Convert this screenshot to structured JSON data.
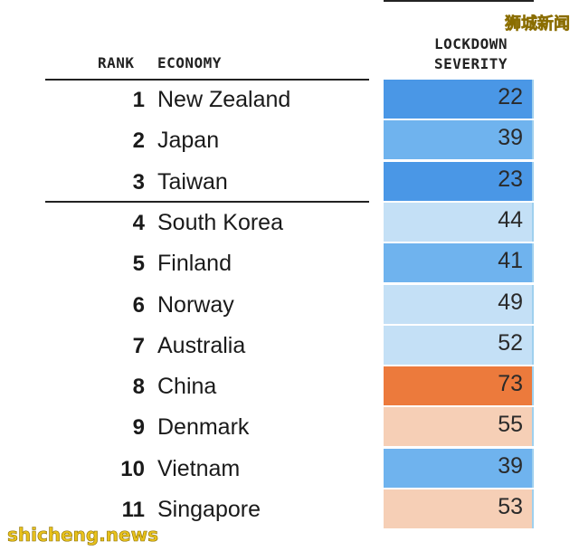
{
  "watermarks": {
    "top": "狮城新闻",
    "bottom": "shicheng.news"
  },
  "headers": {
    "rank": "RANK",
    "economy": "ECONOMY",
    "severity_line1": "LOCKDOWN",
    "severity_line2": "SEVERITY"
  },
  "colors": {
    "strong_blue": "#4a97e6",
    "mid_blue": "#6fb3ee",
    "light_blue": "#c4e0f6",
    "orange": "#ec7a3c",
    "peach": "#f6cfb6"
  },
  "rows": [
    {
      "rank": "1",
      "economy": "New Zealand",
      "severity": "22",
      "color": "#4a97e6"
    },
    {
      "rank": "2",
      "economy": "Japan",
      "severity": "39",
      "color": "#6fb3ee"
    },
    {
      "rank": "3",
      "economy": "Taiwan",
      "severity": "23",
      "color": "#4a97e6"
    },
    {
      "rank": "4",
      "economy": "South Korea",
      "severity": "44",
      "color": "#c4e0f6"
    },
    {
      "rank": "5",
      "economy": "Finland",
      "severity": "41",
      "color": "#6fb3ee"
    },
    {
      "rank": "6",
      "economy": "Norway",
      "severity": "49",
      "color": "#c4e0f6"
    },
    {
      "rank": "7",
      "economy": "Australia",
      "severity": "52",
      "color": "#c4e0f6"
    },
    {
      "rank": "8",
      "economy": "China",
      "severity": "73",
      "color": "#ec7a3c"
    },
    {
      "rank": "9",
      "economy": "Denmark",
      "severity": "55",
      "color": "#f6cfb6"
    },
    {
      "rank": "10",
      "economy": "Vietnam",
      "severity": "39",
      "color": "#6fb3ee"
    },
    {
      "rank": "11",
      "economy": "Singapore",
      "severity": "53",
      "color": "#f6cfb6"
    }
  ]
}
